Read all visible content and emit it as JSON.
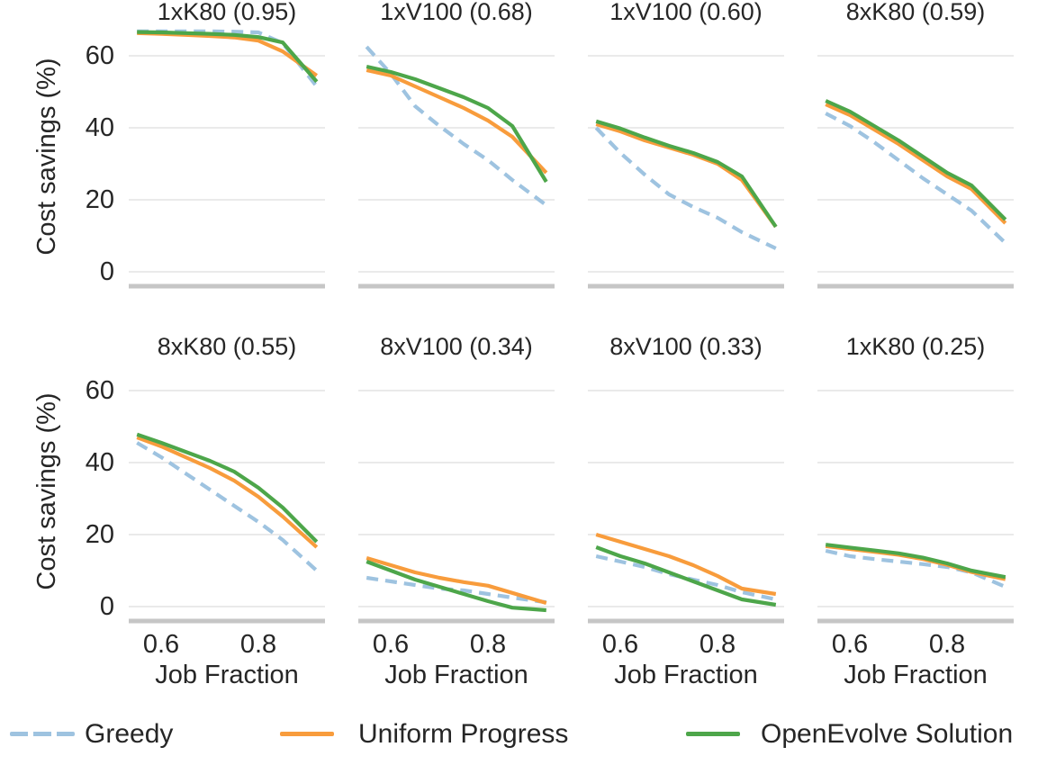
{
  "figure": {
    "ylabel": "Cost savings (%)",
    "xlabel": "Job Fraction",
    "ytick_labels": [
      "60",
      "40",
      "20",
      "0"
    ],
    "xtick_labels": [
      "0.6",
      "0.8"
    ],
    "background": "#ffffff",
    "gridline_color": "#e3e3e3",
    "spine_color": "#c6c6c6",
    "text_color": "#262626"
  },
  "colors": {
    "greedy": "#9EC3E0",
    "uniform_progress": "#F89C3C",
    "openevolve": "#4DA64A"
  },
  "legend": {
    "position": "bottom",
    "items": [
      {
        "label": "Greedy",
        "color": "#9EC3E0",
        "dash": true
      },
      {
        "label": "Uniform Progress",
        "color": "#F89C3C",
        "dash": false
      },
      {
        "label": "OpenEvolve Solution",
        "color": "#4DA64A",
        "dash": false
      }
    ]
  },
  "chart_data": [
    {
      "type": "line",
      "title": "1xK80 (0.95)",
      "xlabel": "Job Fraction",
      "ylabel": "Cost savings (%)",
      "xlim": [
        0.533,
        0.937
      ],
      "ylim": [
        -4,
        68
      ],
      "xticks": [
        0.6,
        0.8
      ],
      "yticks": [
        0,
        20,
        40,
        60
      ],
      "grid": true,
      "x": [
        0.55,
        0.6,
        0.65,
        0.7,
        0.75,
        0.8,
        0.85,
        0.92
      ],
      "series": [
        {
          "name": "Greedy",
          "values": [
            66.8,
            66.8,
            66.8,
            66.8,
            66.7,
            66.5,
            63.5,
            51.5
          ]
        },
        {
          "name": "Uniform Progress",
          "values": [
            66.3,
            66.1,
            65.8,
            65.5,
            65.1,
            64.2,
            61.2,
            54.5
          ]
        },
        {
          "name": "OpenEvolve Solution",
          "values": [
            66.6,
            66.5,
            66.3,
            66.1,
            65.8,
            65.2,
            63.7,
            52.8
          ]
        }
      ]
    },
    {
      "type": "line",
      "title": "1xV100 (0.68)",
      "xlabel": "Job Fraction",
      "ylabel": "Cost savings (%)",
      "xlim": [
        0.533,
        0.937
      ],
      "ylim": [
        -4,
        68
      ],
      "xticks": [
        0.6,
        0.8
      ],
      "yticks": [
        0,
        20,
        40,
        60
      ],
      "grid": true,
      "x": [
        0.55,
        0.6,
        0.65,
        0.7,
        0.75,
        0.8,
        0.85,
        0.92
      ],
      "series": [
        {
          "name": "Greedy",
          "values": [
            62.5,
            55.0,
            46.0,
            40.5,
            35.5,
            31.0,
            25.5,
            18.5
          ]
        },
        {
          "name": "Uniform Progress",
          "values": [
            56.0,
            54.5,
            51.5,
            48.5,
            45.5,
            42.0,
            37.5,
            27.5
          ]
        },
        {
          "name": "OpenEvolve Solution",
          "values": [
            57.0,
            55.5,
            53.5,
            51.0,
            48.5,
            45.5,
            40.5,
            25.0
          ]
        }
      ]
    },
    {
      "type": "line",
      "title": "1xV100 (0.60)",
      "xlabel": "Job Fraction",
      "ylabel": "Cost savings (%)",
      "xlim": [
        0.533,
        0.937
      ],
      "ylim": [
        -4,
        68
      ],
      "xticks": [
        0.6,
        0.8
      ],
      "yticks": [
        0,
        20,
        40,
        60
      ],
      "grid": true,
      "x": [
        0.55,
        0.6,
        0.65,
        0.7,
        0.75,
        0.8,
        0.85,
        0.92
      ],
      "series": [
        {
          "name": "Greedy",
          "values": [
            40.0,
            33.0,
            27.0,
            21.5,
            18.0,
            15.0,
            11.0,
            6.5
          ]
        },
        {
          "name": "Uniform Progress",
          "values": [
            41.0,
            39.0,
            36.5,
            34.5,
            32.5,
            30.0,
            25.5,
            12.5
          ]
        },
        {
          "name": "OpenEvolve Solution",
          "values": [
            41.8,
            39.8,
            37.3,
            35.0,
            33.0,
            30.5,
            26.5,
            12.5
          ]
        }
      ]
    },
    {
      "type": "line",
      "title": "8xK80 (0.59)",
      "xlabel": "Job Fraction",
      "ylabel": "Cost savings (%)",
      "xlim": [
        0.533,
        0.937
      ],
      "ylim": [
        -4,
        68
      ],
      "xticks": [
        0.6,
        0.8
      ],
      "yticks": [
        0,
        20,
        40,
        60
      ],
      "grid": true,
      "x": [
        0.55,
        0.6,
        0.65,
        0.7,
        0.75,
        0.8,
        0.85,
        0.92
      ],
      "series": [
        {
          "name": "Greedy",
          "values": [
            44.0,
            40.5,
            36.0,
            31.0,
            26.0,
            21.5,
            17.0,
            8.0
          ]
        },
        {
          "name": "Uniform Progress",
          "values": [
            46.5,
            43.5,
            39.5,
            35.5,
            31.0,
            26.5,
            23.0,
            13.5
          ]
        },
        {
          "name": "OpenEvolve Solution",
          "values": [
            47.5,
            44.5,
            40.5,
            36.5,
            32.0,
            27.5,
            24.0,
            14.5
          ]
        }
      ]
    },
    {
      "type": "line",
      "title": "8xK80 (0.55)",
      "xlabel": "Job Fraction",
      "ylabel": "Cost savings (%)",
      "xlim": [
        0.533,
        0.937
      ],
      "ylim": [
        -4,
        68
      ],
      "xticks": [
        0.6,
        0.8
      ],
      "yticks": [
        0,
        20,
        40,
        60
      ],
      "grid": true,
      "x": [
        0.55,
        0.6,
        0.65,
        0.7,
        0.75,
        0.8,
        0.85,
        0.92
      ],
      "series": [
        {
          "name": "Greedy",
          "values": [
            45.5,
            41.5,
            37.0,
            32.5,
            28.0,
            23.5,
            18.5,
            10.0
          ]
        },
        {
          "name": "Uniform Progress",
          "values": [
            47.0,
            44.5,
            41.5,
            38.5,
            35.0,
            30.5,
            25.0,
            16.5
          ]
        },
        {
          "name": "OpenEvolve Solution",
          "values": [
            47.8,
            45.5,
            43.0,
            40.5,
            37.5,
            33.0,
            27.5,
            18.0
          ]
        }
      ]
    },
    {
      "type": "line",
      "title": "8xV100 (0.34)",
      "xlabel": "Job Fraction",
      "ylabel": "Cost savings (%)",
      "xlim": [
        0.533,
        0.937
      ],
      "ylim": [
        -4,
        68
      ],
      "xticks": [
        0.6,
        0.8
      ],
      "yticks": [
        0,
        20,
        40,
        60
      ],
      "grid": true,
      "x": [
        0.55,
        0.6,
        0.65,
        0.7,
        0.75,
        0.8,
        0.85,
        0.92
      ],
      "series": [
        {
          "name": "Greedy",
          "values": [
            8.0,
            7.0,
            6.0,
            5.0,
            4.5,
            3.5,
            2.5,
            1.2
          ]
        },
        {
          "name": "Uniform Progress",
          "values": [
            13.5,
            11.5,
            9.5,
            8.0,
            6.8,
            5.8,
            3.8,
            1.0
          ]
        },
        {
          "name": "OpenEvolve Solution",
          "values": [
            12.5,
            10.0,
            7.5,
            5.5,
            3.5,
            1.5,
            -0.3,
            -1.0
          ]
        }
      ]
    },
    {
      "type": "line",
      "title": "8xV100 (0.33)",
      "xlabel": "Job Fraction",
      "ylabel": "Cost savings (%)",
      "xlim": [
        0.533,
        0.937
      ],
      "ylim": [
        -4,
        68
      ],
      "xticks": [
        0.6,
        0.8
      ],
      "yticks": [
        0,
        20,
        40,
        60
      ],
      "grid": true,
      "x": [
        0.55,
        0.6,
        0.65,
        0.7,
        0.75,
        0.8,
        0.85,
        0.92
      ],
      "series": [
        {
          "name": "Greedy",
          "values": [
            14.0,
            12.5,
            11.0,
            9.0,
            7.5,
            6.0,
            4.0,
            2.0
          ]
        },
        {
          "name": "Uniform Progress",
          "values": [
            20.0,
            18.0,
            16.0,
            14.0,
            11.5,
            8.5,
            5.0,
            3.5
          ]
        },
        {
          "name": "OpenEvolve Solution",
          "values": [
            16.5,
            14.0,
            12.0,
            9.5,
            7.0,
            4.5,
            2.0,
            0.5
          ]
        }
      ]
    },
    {
      "type": "line",
      "title": "1xK80 (0.25)",
      "xlabel": "Job Fraction",
      "ylabel": "Cost savings (%)",
      "xlim": [
        0.533,
        0.937
      ],
      "ylim": [
        -4,
        68
      ],
      "xticks": [
        0.6,
        0.8
      ],
      "yticks": [
        0,
        20,
        40,
        60
      ],
      "grid": true,
      "x": [
        0.55,
        0.6,
        0.65,
        0.7,
        0.75,
        0.8,
        0.85,
        0.92
      ],
      "series": [
        {
          "name": "Greedy",
          "values": [
            15.5,
            14.0,
            13.2,
            12.5,
            11.8,
            11.0,
            9.5,
            5.5
          ]
        },
        {
          "name": "Uniform Progress",
          "values": [
            16.8,
            16.0,
            15.2,
            14.4,
            13.2,
            11.6,
            9.6,
            7.6
          ]
        },
        {
          "name": "OpenEvolve Solution",
          "values": [
            17.2,
            16.4,
            15.6,
            14.8,
            13.6,
            12.0,
            10.0,
            8.2
          ]
        }
      ]
    }
  ]
}
